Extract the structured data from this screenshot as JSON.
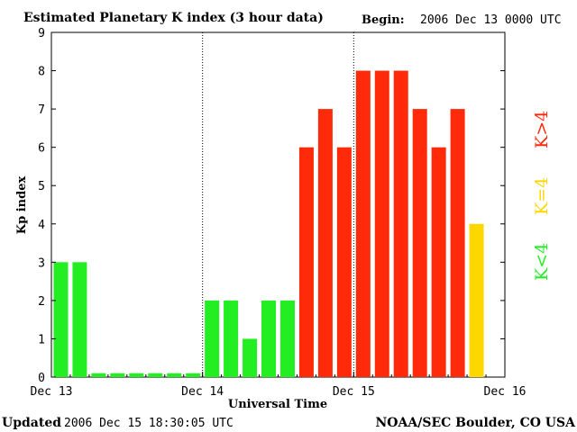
{
  "header": {
    "title": "Estimated Planetary K index (3 hour data)",
    "begin_label": "Begin:",
    "begin_value": "2006 Dec 13 0000 UTC"
  },
  "footer": {
    "updated_label": "Updated",
    "updated_value": "2006 Dec 15 18:30:05 UTC",
    "source": "NOAA/SEC Boulder, CO USA"
  },
  "legend": {
    "high": "K>4",
    "equal": "K=4",
    "low": "K<4"
  },
  "colors": {
    "low": "#22ee22",
    "equal": "#ffd700",
    "high": "#ff2a0a",
    "axis": "#000000"
  },
  "chart_data": {
    "type": "bar",
    "title": "Estimated Planetary K index (3 hour data)",
    "xlabel": "Universal Time",
    "ylabel": "Kp index",
    "ylim": [
      0,
      9
    ],
    "yticks": [
      "0",
      "1",
      "2",
      "3",
      "4",
      "5",
      "6",
      "7",
      "8",
      "9"
    ],
    "xticks": [
      "Dec 13",
      "Dec 14",
      "Dec 15",
      "Dec 16"
    ],
    "bar_interval_hours": 3,
    "day_dividers": [
      "Dec 14",
      "Dec 15"
    ],
    "values": [
      3,
      3,
      0,
      0,
      0,
      0,
      0,
      0,
      2,
      2,
      1,
      2,
      2,
      6,
      7,
      6,
      8,
      8,
      8,
      7,
      6,
      7,
      4
    ],
    "categories": [
      "Dec 13 00",
      "Dec 13 03",
      "Dec 13 06",
      "Dec 13 09",
      "Dec 13 12",
      "Dec 13 15",
      "Dec 13 18",
      "Dec 13 21",
      "Dec 14 00",
      "Dec 14 03",
      "Dec 14 06",
      "Dec 14 09",
      "Dec 14 12",
      "Dec 14 15",
      "Dec 14 18",
      "Dec 14 21",
      "Dec 15 00",
      "Dec 15 03",
      "Dec 15 06",
      "Dec 15 09",
      "Dec 15 12",
      "Dec 15 15",
      "Dec 15 18"
    ],
    "grid": false
  }
}
